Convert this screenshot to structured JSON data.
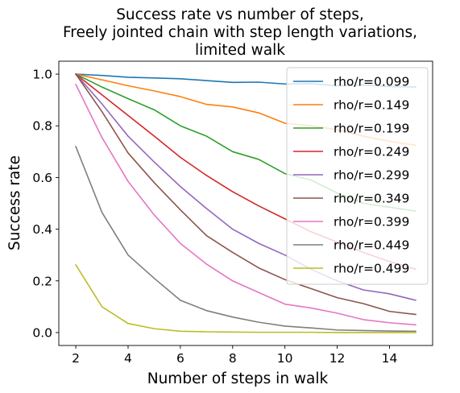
{
  "chart_data": {
    "type": "line",
    "title": [
      "Success rate vs number of steps,",
      "Freely jointed chain with step length variations,",
      "limited walk"
    ],
    "xlabel": "Number of steps in walk",
    "ylabel": "Success rate",
    "xlim": [
      1.35,
      15.65
    ],
    "ylim": [
      -0.05,
      1.05
    ],
    "xticks": [
      2,
      4,
      6,
      8,
      10,
      12,
      14
    ],
    "yticks": [
      0.0,
      0.2,
      0.4,
      0.6,
      0.8,
      1.0
    ],
    "xtick_labels": [
      "2",
      "4",
      "6",
      "8",
      "10",
      "12",
      "14"
    ],
    "ytick_labels": [
      "0.0",
      "0.2",
      "0.4",
      "0.6",
      "0.8",
      "1.0"
    ],
    "grid": false,
    "legend_position": "top-right",
    "x": [
      2,
      3,
      4,
      5,
      6,
      7,
      8,
      9,
      10,
      11,
      12,
      13,
      14,
      15
    ],
    "series": [
      {
        "name": "rho/r=0.099",
        "color": "#1f77b4",
        "values": [
          1.0,
          0.995,
          0.988,
          0.985,
          0.982,
          0.975,
          0.968,
          0.969,
          0.962,
          0.963,
          0.955,
          0.958,
          0.952,
          0.95
        ]
      },
      {
        "name": "rho/r=0.149",
        "color": "#ff7f0e",
        "values": [
          1.0,
          0.978,
          0.955,
          0.935,
          0.913,
          0.883,
          0.873,
          0.85,
          0.81,
          0.8,
          0.785,
          0.76,
          0.74,
          0.725
        ]
      },
      {
        "name": "rho/r=0.199",
        "color": "#2ca02c",
        "values": [
          1.0,
          0.95,
          0.905,
          0.862,
          0.8,
          0.76,
          0.7,
          0.67,
          0.615,
          0.59,
          0.54,
          0.5,
          0.485,
          0.47
        ]
      },
      {
        "name": "rho/r=0.249",
        "color": "#d62728",
        "values": [
          1.0,
          0.92,
          0.84,
          0.76,
          0.678,
          0.608,
          0.545,
          0.49,
          0.44,
          0.39,
          0.35,
          0.31,
          0.275,
          0.245
        ]
      },
      {
        "name": "rho/r=0.299",
        "color": "#9467bd",
        "values": [
          1.0,
          0.885,
          0.76,
          0.66,
          0.565,
          0.48,
          0.4,
          0.345,
          0.3,
          0.245,
          0.2,
          0.165,
          0.15,
          0.125
        ]
      },
      {
        "name": "rho/r=0.349",
        "color": "#8c564b",
        "values": [
          1.0,
          0.855,
          0.695,
          0.58,
          0.475,
          0.375,
          0.31,
          0.25,
          0.205,
          0.17,
          0.135,
          0.112,
          0.082,
          0.07
        ]
      },
      {
        "name": "rho/r=0.399",
        "color": "#e377c2",
        "values": [
          0.96,
          0.755,
          0.585,
          0.455,
          0.345,
          0.265,
          0.2,
          0.155,
          0.11,
          0.095,
          0.075,
          0.05,
          0.038,
          0.03
        ]
      },
      {
        "name": "rho/r=0.449",
        "color": "#7f7f7f",
        "values": [
          0.72,
          0.465,
          0.3,
          0.21,
          0.125,
          0.085,
          0.06,
          0.04,
          0.025,
          0.018,
          0.01,
          0.008,
          0.006,
          0.005
        ]
      },
      {
        "name": "rho/r=0.499",
        "color": "#bcbd22",
        "values": [
          0.262,
          0.1,
          0.035,
          0.015,
          0.005,
          0.003,
          0.002,
          0.001,
          0.001,
          0.001,
          0.0,
          0.0,
          0.0,
          0.0
        ]
      }
    ]
  }
}
